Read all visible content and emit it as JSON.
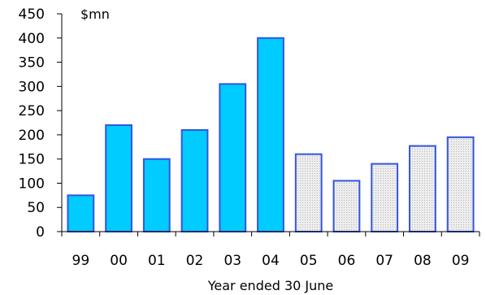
{
  "chart_data": {
    "type": "bar",
    "categories": [
      "99",
      "00",
      "01",
      "02",
      "03",
      "04",
      "05",
      "06",
      "07",
      "08",
      "09"
    ],
    "values": [
      75,
      220,
      150,
      210,
      305,
      400,
      160,
      105,
      140,
      177,
      195
    ],
    "bar_styles": [
      "actual",
      "actual",
      "actual",
      "actual",
      "actual",
      "actual",
      "forecast",
      "forecast",
      "forecast",
      "forecast",
      "forecast"
    ],
    "unit_label": "$mn",
    "xlabel": "Year ended 30 June",
    "ylabel": "",
    "ylim": [
      0,
      450
    ],
    "yticks": [
      0,
      50,
      100,
      150,
      200,
      250,
      300,
      350,
      400,
      450
    ],
    "grid": false,
    "legend": "none",
    "colors": {
      "actual_fill": "#00ccff",
      "forecast_fill": "#e6e6e6",
      "bar_outline": "#3355dd",
      "axis": "#000000"
    }
  }
}
